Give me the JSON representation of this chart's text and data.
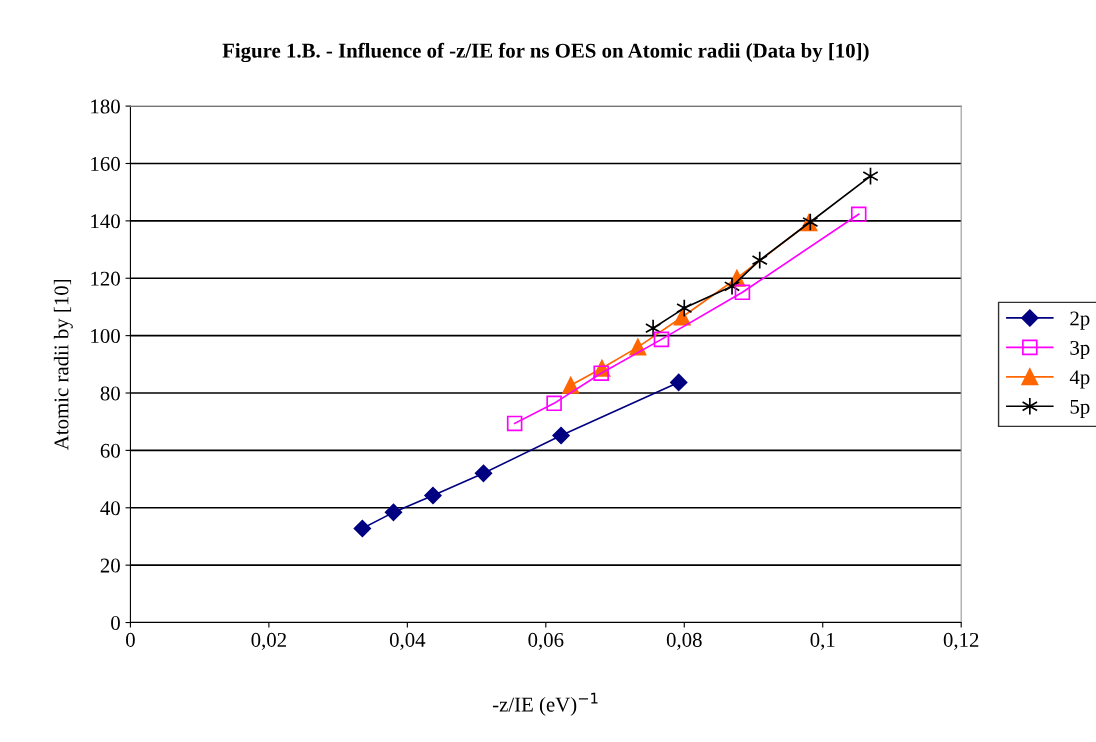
{
  "chart_data": {
    "type": "line",
    "title": "Figure 1.B. - Influence of -z/IE for ns OES on Atomic radii (Data by [10])",
    "xlabel": "-z/IE (eV)$^{−1}$",
    "ylabel": "Atomic radii by [10]",
    "xlim": [
      0,
      0.12
    ],
    "xticks": [
      0,
      {
        "value": 0.02,
        "label": "0,02"
      },
      {
        "value": 0.04,
        "label": "0,04"
      },
      {
        "value": 0.06,
        "label": "0,06"
      },
      {
        "value": 0.08,
        "label": "0,08"
      },
      {
        "value": 0.1,
        "label": "0,1"
      },
      {
        "value": 0.12,
        "label": "0,12"
      }
    ],
    "ylim": [
      0,
      180
    ],
    "yticks": [
      0,
      20,
      40,
      60,
      80,
      100,
      120,
      140,
      160,
      180
    ],
    "grid": "y",
    "legend": "right",
    "series": [
      {
        "name": "2p",
        "color": "#000080",
        "marker": "diamond",
        "x": [
          0.0335,
          0.038,
          0.0437,
          0.051,
          0.0622,
          0.0792
        ],
        "values": [
          32.8,
          38.4,
          44.3,
          52.0,
          65.2,
          83.7
        ]
      },
      {
        "name": "3p",
        "color": "#ff00ff",
        "marker": "square",
        "x": [
          0.0555,
          0.0612,
          0.068,
          0.0767,
          0.0884,
          0.1052
        ],
        "values": [
          69.4,
          76.4,
          86.9,
          98.7,
          115.1,
          142.3
        ]
      },
      {
        "name": "4p",
        "color": "#ff6600",
        "marker": "triangle",
        "x": [
          0.0636,
          0.0681,
          0.0733,
          0.0797,
          0.0876,
          0.098
        ],
        "values": [
          82.7,
          88.6,
          96.0,
          106.5,
          120.0,
          139.3
        ]
      },
      {
        "name": "5p",
        "color": "#000000",
        "marker": "cross",
        "x": [
          0.0755,
          0.08,
          0.0869,
          0.0909,
          0.0982,
          0.1069
        ],
        "values": [
          102.6,
          109.6,
          117.2,
          126.3,
          139.6,
          155.6
        ]
      }
    ]
  }
}
